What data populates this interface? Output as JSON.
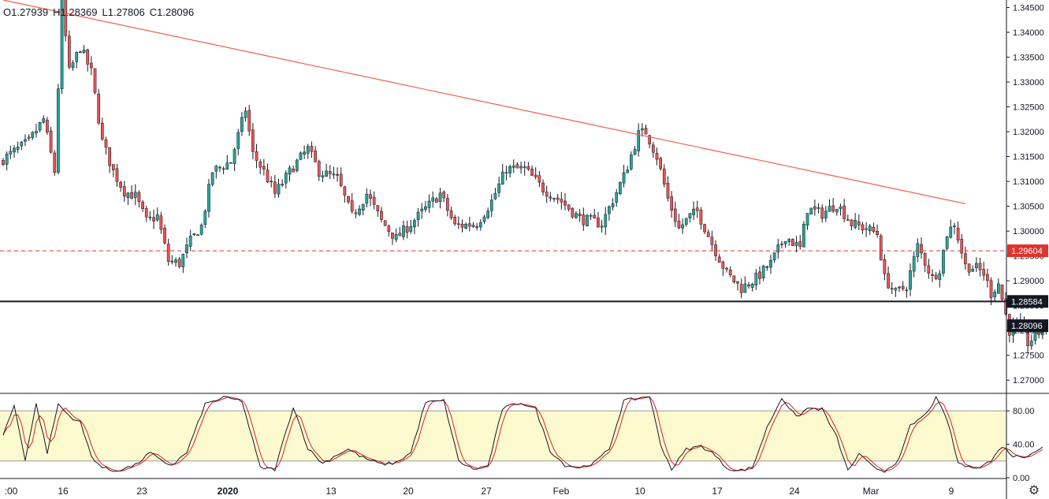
{
  "legend": {
    "o": "O1.27939",
    "h": "H1.28369",
    "l": "L1.27806",
    "c": "C1.28096"
  },
  "colors": {
    "up": "#26a69a",
    "down": "#ef5350",
    "wick": "#131722",
    "trendline": "#f0604a",
    "support": "#131722",
    "resistance": "#e0322e",
    "band": "#fdfad0",
    "stoch_k": "#131722",
    "stoch_d": "#e02020"
  },
  "chart_data": {
    "type": "candlestick",
    "price_axis": {
      "ylim": [
        1.2675,
        1.3465
      ],
      "ticks": [
        "1.34500",
        "1.34000",
        "1.33500",
        "1.33000",
        "1.32500",
        "1.32000",
        "1.31500",
        "1.31000",
        "1.30500",
        "1.30000",
        "1.29500",
        "1.29000",
        "1.28500",
        "1.28000",
        "1.27500",
        "1.27000"
      ]
    },
    "time_axis": {
      "labels": [
        ":00",
        "16",
        "23",
        "2020",
        "13",
        "20",
        "27",
        "Feb",
        "10",
        "17",
        "24",
        "Mar",
        "9"
      ]
    },
    "horizontal_lines": [
      {
        "label": "1.29604",
        "value": 1.29604,
        "style": "dashed"
      },
      {
        "label": "1.28584",
        "value": 1.28584,
        "style": "solid"
      }
    ],
    "last_price": {
      "label": "1.28096",
      "value": 1.28096
    },
    "trendline": {
      "from": [
        0,
        1.3465
      ],
      "to": [
        262,
        1.3055
      ]
    },
    "anchors": [
      [
        0,
        1.314
      ],
      [
        8,
        1.318
      ],
      [
        12,
        1.3225
      ],
      [
        15,
        1.312
      ],
      [
        17,
        1.346
      ],
      [
        19,
        1.332
      ],
      [
        22,
        1.337
      ],
      [
        25,
        1.332
      ],
      [
        28,
        1.318
      ],
      [
        31,
        1.312
      ],
      [
        34,
        1.308
      ],
      [
        37,
        1.307
      ],
      [
        40,
        1.302
      ],
      [
        43,
        1.303
      ],
      [
        46,
        1.294
      ],
      [
        49,
        1.2935
      ],
      [
        52,
        1.298
      ],
      [
        55,
        1.301
      ],
      [
        58,
        1.312
      ],
      [
        63,
        1.314
      ],
      [
        67,
        1.3245
      ],
      [
        69,
        1.3155
      ],
      [
        72,
        1.312
      ],
      [
        75,
        1.3075
      ],
      [
        80,
        1.313
      ],
      [
        84,
        1.3165
      ],
      [
        87,
        1.312
      ],
      [
        92,
        1.3105
      ],
      [
        96,
        1.303
      ],
      [
        100,
        1.3075
      ],
      [
        104,
        1.302
      ],
      [
        108,
        1.2985
      ],
      [
        114,
        1.303
      ],
      [
        120,
        1.3075
      ],
      [
        124,
        1.301
      ],
      [
        130,
        1.3015
      ],
      [
        134,
        1.306
      ],
      [
        138,
        1.3125
      ],
      [
        143,
        1.3125
      ],
      [
        148,
        1.3085
      ],
      [
        153,
        1.306
      ],
      [
        158,
        1.3025
      ],
      [
        164,
        1.3015
      ],
      [
        170,
        1.311
      ],
      [
        174,
        1.3195
      ],
      [
        176,
        1.32
      ],
      [
        179,
        1.315
      ],
      [
        182,
        1.3065
      ],
      [
        185,
        1.3005
      ],
      [
        188,
        1.303
      ],
      [
        190,
        1.304
      ],
      [
        194,
        1.2975
      ],
      [
        198,
        1.2915
      ],
      [
        202,
        1.2885
      ],
      [
        206,
        1.2905
      ],
      [
        210,
        1.2935
      ],
      [
        214,
        1.299
      ],
      [
        218,
        1.2965
      ],
      [
        220,
        1.3045
      ],
      [
        224,
        1.3035
      ],
      [
        228,
        1.3055
      ],
      [
        232,
        1.3015
      ],
      [
        236,
        1.3005
      ],
      [
        239,
        1.2995
      ],
      [
        241,
        1.2905
      ],
      [
        244,
        1.2875
      ],
      [
        247,
        1.289
      ],
      [
        250,
        1.297
      ],
      [
        254,
        1.2905
      ],
      [
        256,
        1.2925
      ],
      [
        258,
        1.2995
      ],
      [
        260,
        1.3015
      ],
      [
        263,
        1.293
      ],
      [
        266,
        1.2925
      ],
      [
        268,
        1.2915
      ],
      [
        270,
        1.2875
      ],
      [
        272,
        1.2895
      ],
      [
        275,
        1.28
      ],
      [
        278,
        1.281
      ],
      [
        280,
        1.2775
      ],
      [
        283,
        1.2795
      ],
      [
        284,
        1.281
      ]
    ],
    "oscillator": {
      "ylim": [
        0,
        100
      ],
      "ticks": [
        "80.00",
        "40.00",
        "0.00"
      ],
      "upper_band": 80,
      "lower_band": 20,
      "anchors": [
        [
          0,
          52
        ],
        [
          3,
          86
        ],
        [
          6,
          22
        ],
        [
          9,
          88
        ],
        [
          12,
          30
        ],
        [
          15,
          88
        ],
        [
          18,
          74
        ],
        [
          21,
          66
        ],
        [
          24,
          26
        ],
        [
          27,
          12
        ],
        [
          30,
          8
        ],
        [
          33,
          11
        ],
        [
          36,
          15
        ],
        [
          40,
          30
        ],
        [
          43,
          20
        ],
        [
          46,
          15
        ],
        [
          50,
          30
        ],
        [
          55,
          88
        ],
        [
          60,
          96
        ],
        [
          65,
          92
        ],
        [
          70,
          12
        ],
        [
          74,
          10
        ],
        [
          79,
          85
        ],
        [
          83,
          35
        ],
        [
          87,
          17
        ],
        [
          91,
          28
        ],
        [
          94,
          34
        ],
        [
          98,
          24
        ],
        [
          103,
          16
        ],
        [
          107,
          18
        ],
        [
          111,
          30
        ],
        [
          115,
          90
        ],
        [
          120,
          92
        ],
        [
          124,
          20
        ],
        [
          128,
          10
        ],
        [
          132,
          14
        ],
        [
          136,
          83
        ],
        [
          141,
          90
        ],
        [
          145,
          82
        ],
        [
          149,
          32
        ],
        [
          153,
          15
        ],
        [
          157,
          12
        ],
        [
          161,
          18
        ],
        [
          165,
          34
        ],
        [
          169,
          92
        ],
        [
          173,
          95
        ],
        [
          176,
          98
        ],
        [
          179,
          40
        ],
        [
          182,
          10
        ],
        [
          186,
          34
        ],
        [
          190,
          38
        ],
        [
          193,
          30
        ],
        [
          197,
          12
        ],
        [
          200,
          8
        ],
        [
          204,
          12
        ],
        [
          208,
          60
        ],
        [
          212,
          96
        ],
        [
          216,
          72
        ],
        [
          219,
          83
        ],
        [
          223,
          82
        ],
        [
          227,
          48
        ],
        [
          230,
          8
        ],
        [
          233,
          28
        ],
        [
          237,
          12
        ],
        [
          240,
          8
        ],
        [
          244,
          22
        ],
        [
          247,
          62
        ],
        [
          251,
          75
        ],
        [
          254,
          95
        ],
        [
          257,
          70
        ],
        [
          260,
          18
        ],
        [
          263,
          12
        ],
        [
          266,
          14
        ],
        [
          269,
          20
        ],
        [
          272,
          38
        ],
        [
          275,
          26
        ],
        [
          278,
          25
        ],
        [
          280,
          30
        ],
        [
          283,
          36
        ]
      ]
    }
  }
}
